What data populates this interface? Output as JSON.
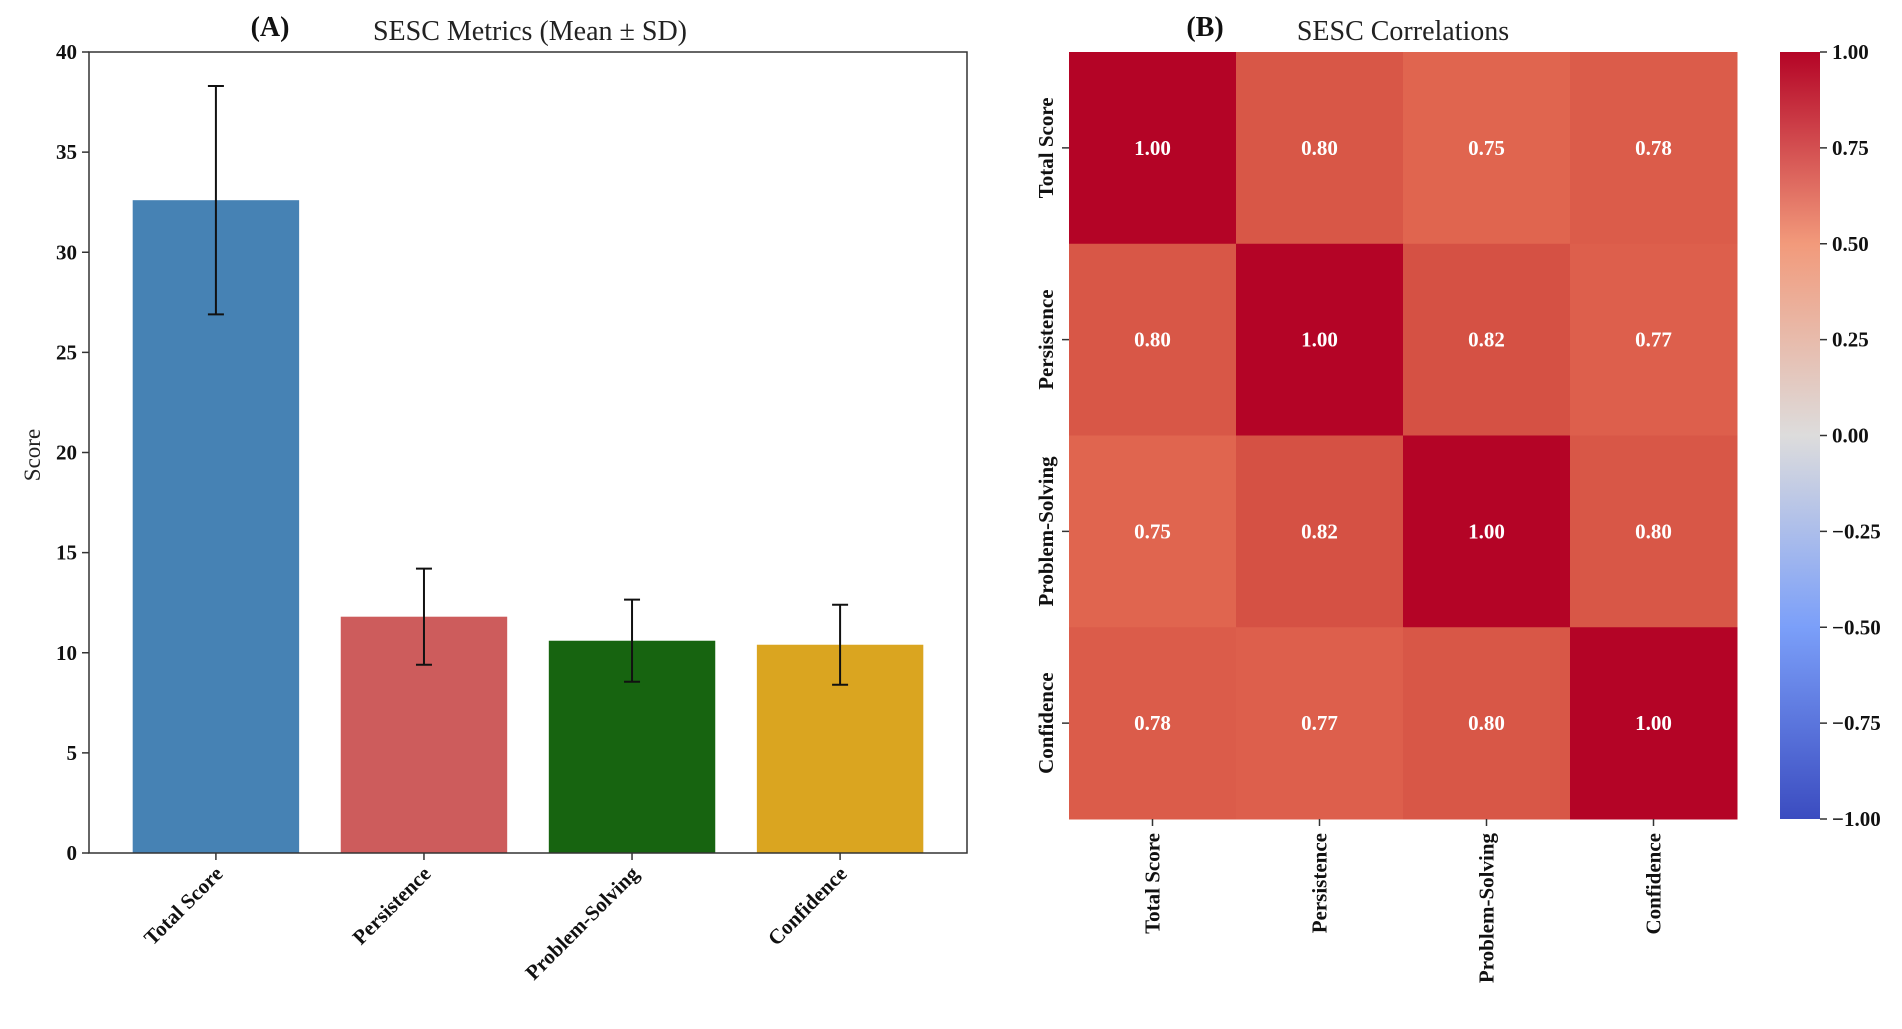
{
  "chart_data": [
    {
      "type": "bar",
      "panel_label": "(A)",
      "title": "SESC Metrics (Mean ± SD)",
      "xlabel": "",
      "ylabel": "Score",
      "categories": [
        "Total Score",
        "Persistence",
        "Problem-Solving",
        "Confidence"
      ],
      "values": [
        32.6,
        11.8,
        10.6,
        10.4
      ],
      "errors": [
        5.7,
        2.4,
        2.05,
        2.0
      ],
      "colors": [
        "#4682b4",
        "#cd5c5c",
        "#176410",
        "#daa520"
      ],
      "ylim": [
        0,
        40
      ],
      "yticks": [
        "0",
        "5",
        "10",
        "15",
        "20",
        "25",
        "30",
        "35",
        "40"
      ],
      "grid": false
    },
    {
      "type": "heatmap",
      "panel_label": "(B)",
      "title": "SESC Correlations",
      "rows": [
        "Total Score",
        "Persistence",
        "Problem-Solving",
        "Confidence"
      ],
      "cols": [
        "Total Score",
        "Persistence",
        "Problem-Solving",
        "Confidence"
      ],
      "values": [
        [
          1.0,
          0.8,
          0.75,
          0.78
        ],
        [
          0.8,
          1.0,
          0.82,
          0.77
        ],
        [
          0.75,
          0.82,
          1.0,
          0.8
        ],
        [
          0.78,
          0.77,
          0.8,
          1.0
        ]
      ],
      "colormap": "coolwarm",
      "vmin": -1.0,
      "vmax": 1.0,
      "colorbar_ticks": [
        "1.00",
        "0.75",
        "0.50",
        "0.25",
        "0.00",
        "−0.25",
        "−0.50",
        "−0.75",
        "−1.00"
      ]
    }
  ]
}
